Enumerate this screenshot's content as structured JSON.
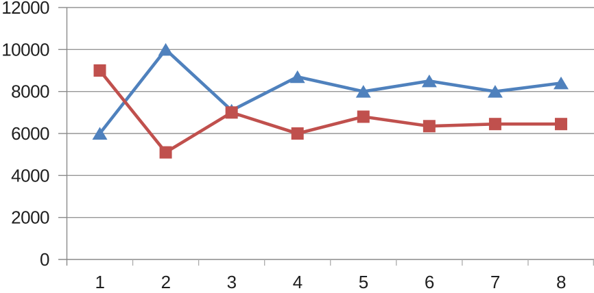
{
  "chart_data": {
    "type": "line",
    "title": "",
    "xlabel": "",
    "ylabel": "",
    "x": [
      "1",
      "2",
      "3",
      "4",
      "5",
      "6",
      "7",
      "8"
    ],
    "yticks": [
      0,
      2000,
      4000,
      6000,
      8000,
      10000,
      12000
    ],
    "ylim": [
      0,
      12000
    ],
    "grid": true,
    "legend": "none",
    "series": [
      {
        "marker": "triangle",
        "color": "#4F81BD",
        "values": [
          6000,
          10000,
          7100,
          8700,
          8000,
          8500,
          8000,
          8400
        ]
      },
      {
        "marker": "square",
        "color": "#C0504D",
        "values": [
          9000,
          5100,
          7000,
          6000,
          6800,
          6350,
          6450,
          6450
        ]
      }
    ],
    "colors": {
      "background": "#FFFFFF",
      "gridline": "#969696",
      "axis": "#8A8A8A",
      "tick": "#ABABAB",
      "label": "#1F1F1F",
      "series_blue": "#4F81BD",
      "series_red": "#C0504D"
    }
  }
}
